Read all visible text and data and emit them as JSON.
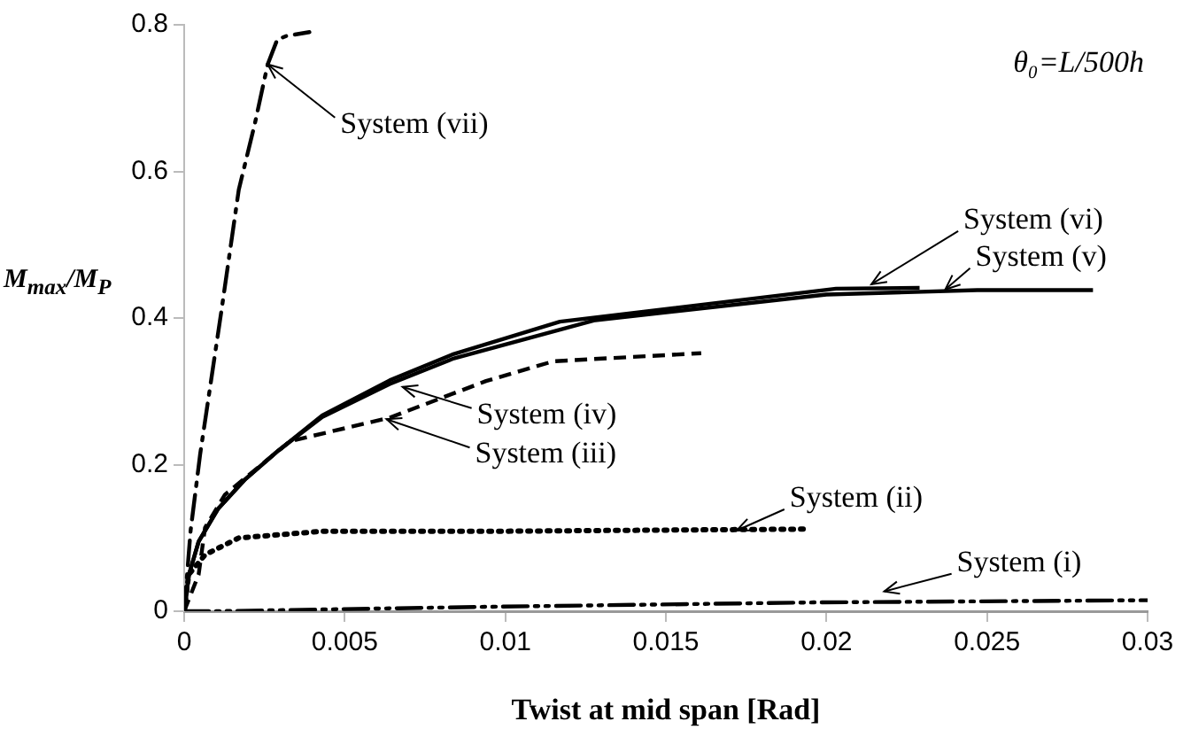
{
  "chart_data": {
    "type": "line",
    "xlabel": "Twist at mid span [Rad]",
    "ylabel": "M$_{max}$/M$_{P}$",
    "xlim": [
      0,
      0.03
    ],
    "xticks": [
      0,
      0.005,
      0.01,
      0.015,
      0.02,
      0.025,
      0.03
    ],
    "ylim": [
      0,
      0.8
    ],
    "yticks": [
      0,
      0.2,
      0.4,
      0.6,
      0.8
    ],
    "grid": false,
    "legend": false,
    "marker": "none",
    "series": [
      {
        "color": "#000000",
        "line_style": "dashdotdot",
        "x": [
          0,
          0.001,
          0.0094,
          0.0196,
          0.03
        ],
        "values": [
          0,
          0,
          0.006,
          0.012,
          0.015
        ]
      },
      {
        "color": "#000000",
        "line_style": "dotted",
        "x": [
          0,
          0.00014,
          0.00065,
          0.0017,
          0.0043,
          0.0094,
          0.0193
        ],
        "values": [
          0,
          0.05,
          0.077,
          0.1,
          0.109,
          0.109,
          0.112
        ]
      },
      {
        "color": "#000000",
        "line_style": "dashed",
        "x": [
          0,
          0.00045,
          0.00065,
          0.00127,
          0.0033,
          0.0064,
          0.0094,
          0.0115,
          0.0161
        ],
        "values": [
          0,
          0.05,
          0.114,
          0.159,
          0.232,
          0.264,
          0.314,
          0.341,
          0.352
        ]
      },
      {
        "color": "#000000",
        "line_style": "solid",
        "x": [
          0,
          0.00015,
          0.00045,
          0.00106,
          0.0019,
          0.0029,
          0.0043,
          0.0064,
          0.0084,
          0.0117,
          0.0203,
          0.0229
        ],
        "values": [
          0,
          0.05,
          0.095,
          0.14,
          0.18,
          0.218,
          0.267,
          0.315,
          0.351,
          0.395,
          0.44,
          0.441
        ]
      },
      {
        "color": "#000000",
        "line_style": "solid",
        "x": [
          0,
          0.00015,
          0.00045,
          0.00106,
          0.0019,
          0.0029,
          0.0043,
          0.0064,
          0.0084,
          0.0128,
          0.02,
          0.0247,
          0.0283
        ],
        "values": [
          0,
          0.05,
          0.095,
          0.14,
          0.18,
          0.218,
          0.265,
          0.31,
          0.345,
          0.397,
          0.432,
          0.438,
          0.438
        ]
      },
      {
        "color": "#000000",
        "line_style": "dashdot",
        "x": [
          0,
          0.0002,
          0.0005,
          0.00116,
          0.0017,
          0.0022,
          0.0026,
          0.0029,
          0.0032,
          0.0039
        ],
        "values": [
          0,
          0.11,
          0.215,
          0.41,
          0.575,
          0.665,
          0.746,
          0.78,
          0.785,
          0.79
        ]
      }
    ],
    "annotations": [
      {
        "text": "System (vii)",
        "x": 0.0026,
        "y": 0.746
      },
      {
        "text": "System (vi)",
        "x": 0.0214,
        "y": 0.446
      },
      {
        "text": "System (v)",
        "x": 0.0237,
        "y": 0.439
      },
      {
        "text": "System (iv)",
        "x": 0.0068,
        "y": 0.306
      },
      {
        "text": "System (iii)",
        "x": 0.0063,
        "y": 0.262
      },
      {
        "text": "System (ii)",
        "x": 0.0172,
        "y": 0.11
      },
      {
        "text": "System (i)",
        "x": 0.0218,
        "y": 0.027
      },
      "θ₀=L/500h"
    ]
  }
}
